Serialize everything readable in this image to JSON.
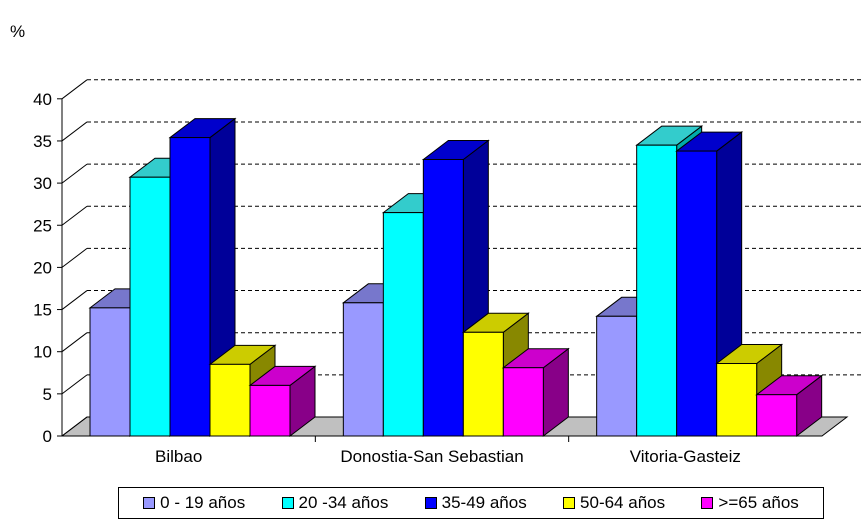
{
  "chart_data": {
    "type": "bar",
    "unit_label": "%",
    "categories": [
      "Bilbao",
      "Donostia-San Sebastian",
      "Vitoria-Gasteiz"
    ],
    "series": [
      {
        "name": "0 - 19 años",
        "values": [
          15.2,
          15.8,
          14.2
        ],
        "color": "#9999FF",
        "side": "#6666CC",
        "top": "#7777CC"
      },
      {
        "name": "20 -34 años",
        "values": [
          30.7,
          26.5,
          34.5
        ],
        "color": "#00FFFF",
        "side": "#00AAAA",
        "top": "#33CCCC"
      },
      {
        "name": "35-49 años",
        "values": [
          35.4,
          32.8,
          33.8
        ],
        "color": "#0000FF",
        "side": "#000099",
        "top": "#0000CC"
      },
      {
        "name": "50-64 años",
        "values": [
          8.5,
          12.3,
          8.6
        ],
        "color": "#FFFF00",
        "side": "#888800",
        "top": "#CCCC00"
      },
      {
        "name": ">=65 años",
        "values": [
          6.0,
          8.1,
          4.9
        ],
        "color": "#FF00FF",
        "side": "#880088",
        "top": "#CC00CC"
      }
    ],
    "yticks": [
      "0",
      "5",
      "10",
      "15",
      "20",
      "25",
      "30",
      "35",
      "40"
    ],
    "ylim": [
      0,
      40
    ],
    "grid": true,
    "legend_position": "bottom"
  }
}
